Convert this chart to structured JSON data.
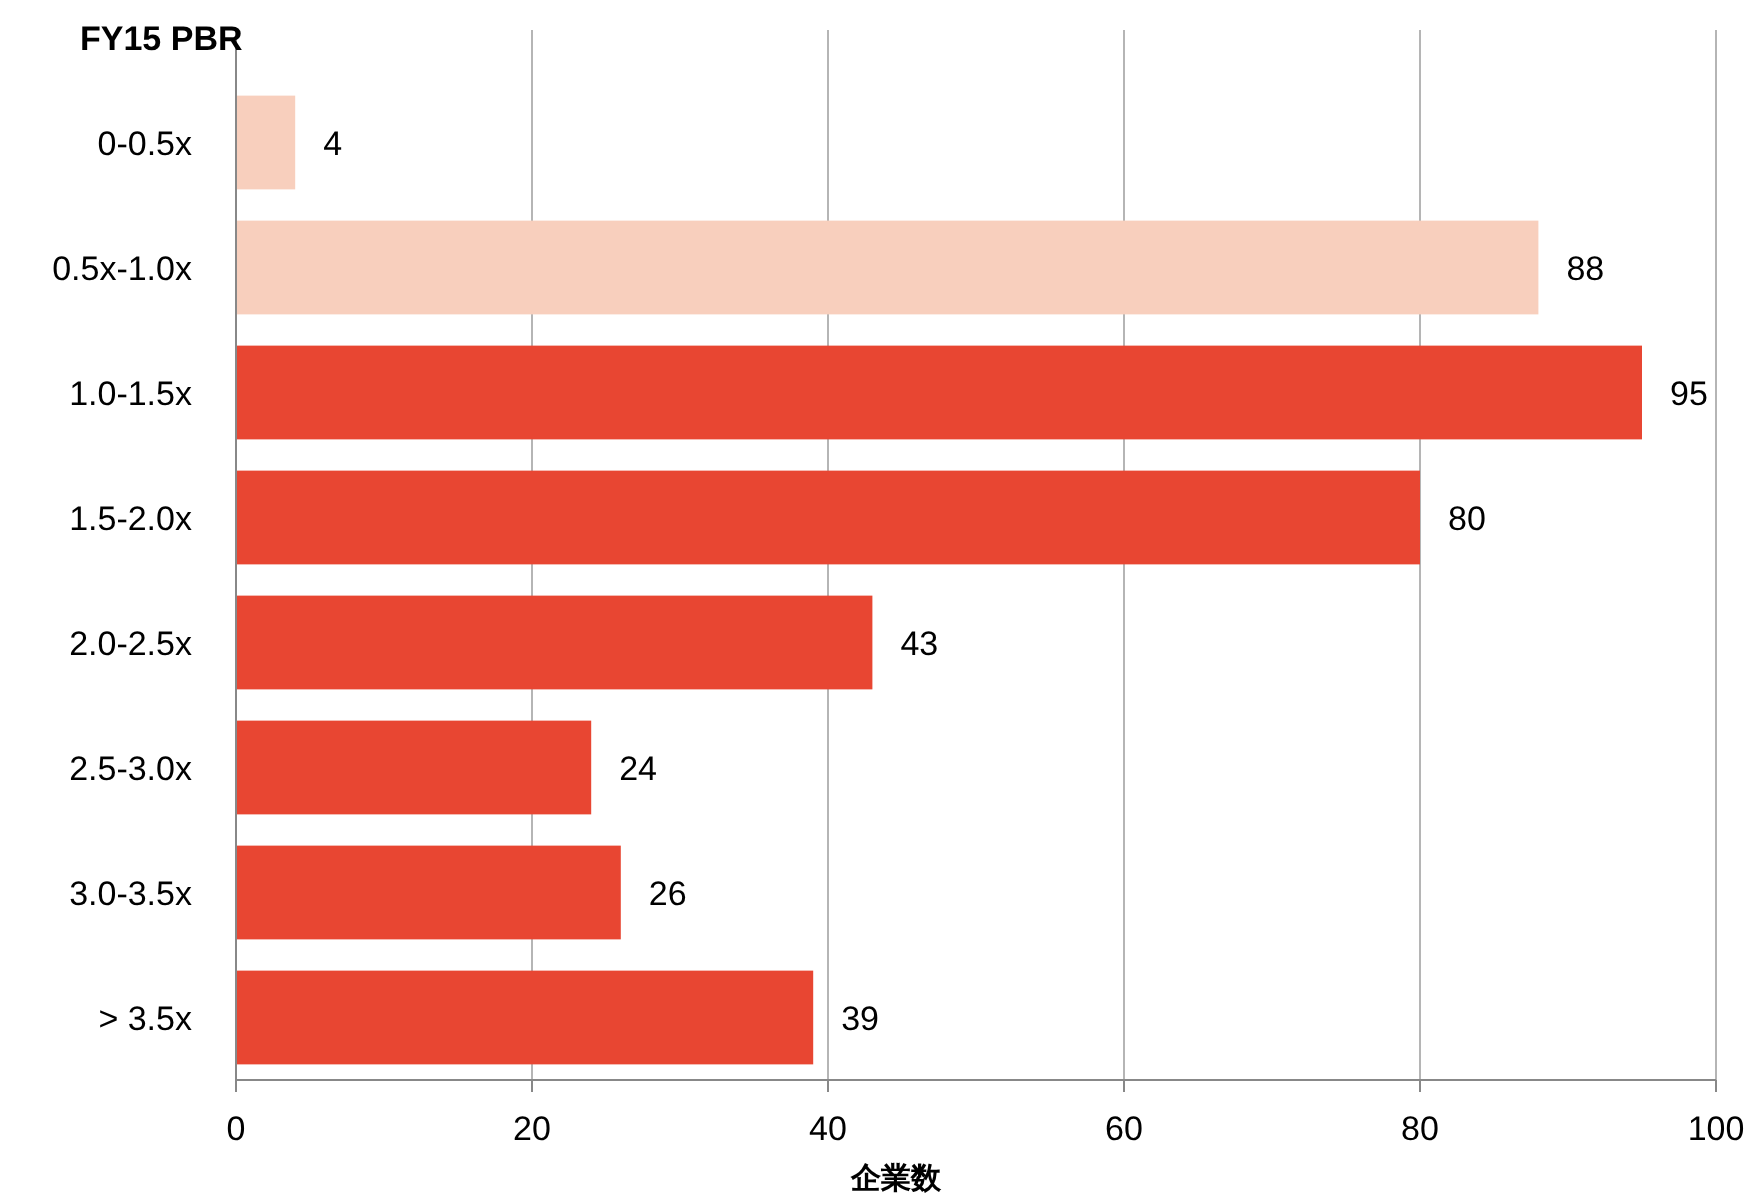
{
  "chart_data": {
    "type": "bar",
    "orientation": "horizontal",
    "title": "FY15 PBR",
    "xlabel": "企業数",
    "categories": [
      "0-0.5x",
      "0.5x-1.0x",
      "1.0-1.5x",
      "1.5-2.0x",
      "2.0-2.5x",
      "2.5-3.0x",
      "3.0-3.5x",
      "> 3.5x"
    ],
    "values": [
      4,
      88,
      95,
      80,
      43,
      24,
      26,
      39
    ],
    "colors": [
      "#f8cfbd",
      "#f8cfbd",
      "#e84632",
      "#e84632",
      "#e84632",
      "#e84632",
      "#e84632",
      "#e84632"
    ],
    "xlim": [
      0,
      100
    ],
    "xticks": [
      0,
      20,
      40,
      60,
      80,
      100
    ],
    "grid": "x",
    "data_labels": true
  }
}
